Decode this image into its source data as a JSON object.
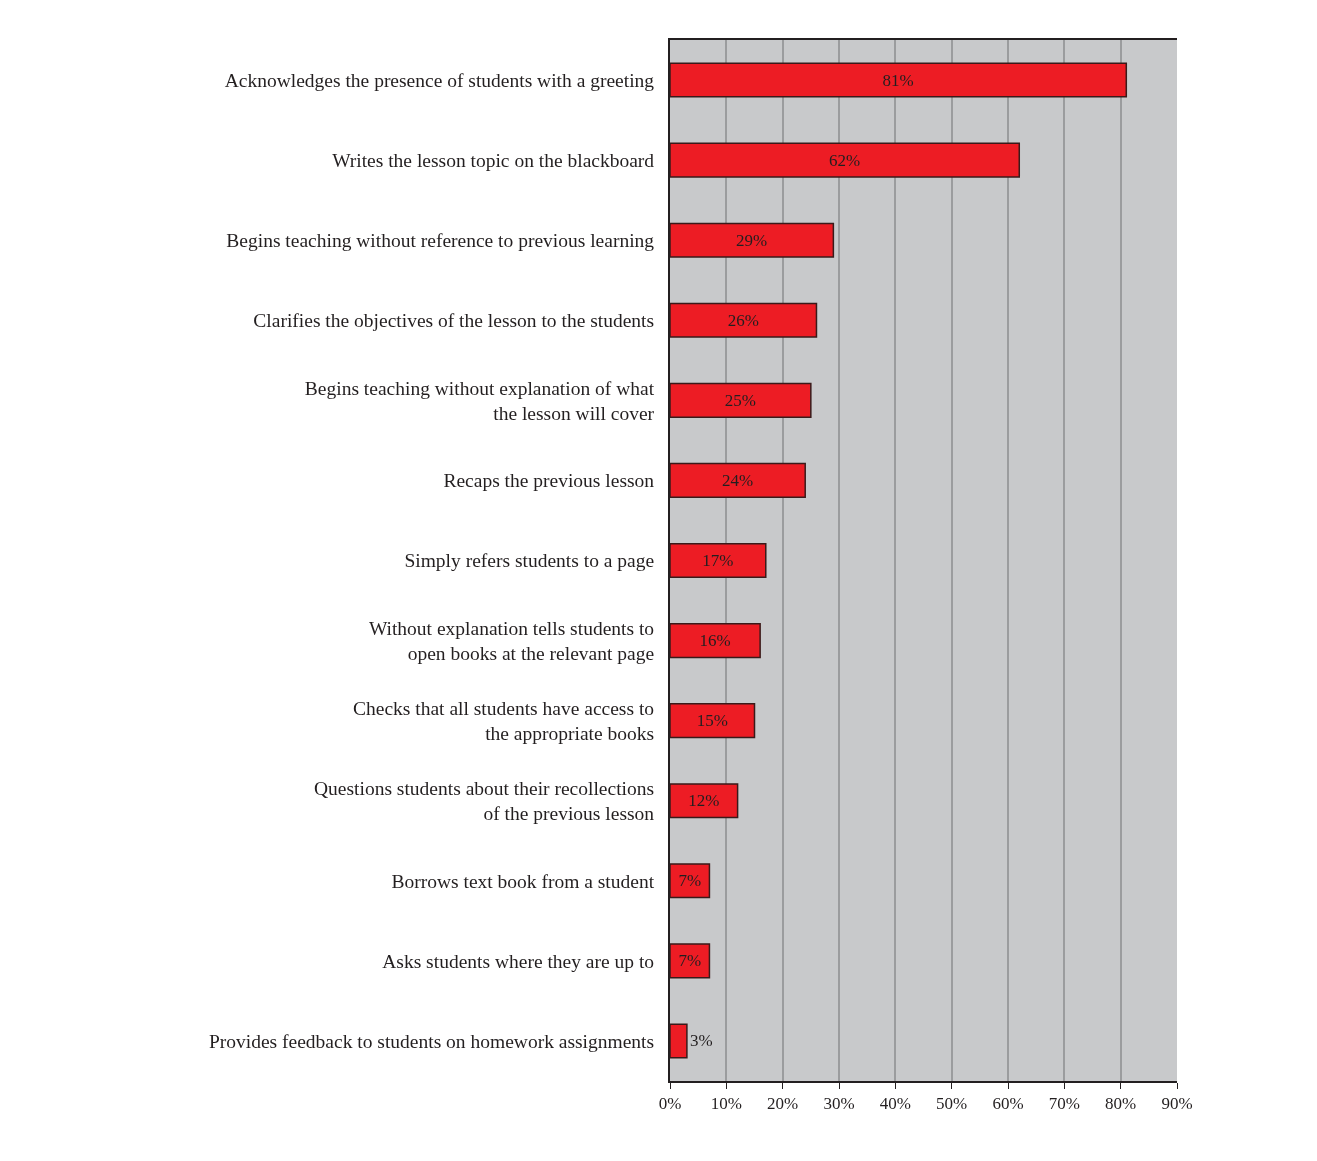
{
  "chart_data": {
    "type": "bar",
    "orientation": "horizontal",
    "categories": [
      "Acknowledges the presence of students with a greeting",
      "Writes the lesson topic on the blackboard",
      "Begins teaching without reference to previous learning",
      "Clarifies the objectives of the lesson to the students",
      "Begins teaching without explanation of what\nthe lesson will cover",
      "Recaps the previous lesson",
      "Simply refers students to a page",
      "Without explanation tells students to\nopen books at the relevant page",
      "Checks that all students have access to\nthe appropriate books",
      "Questions students about their recollections\nof the previous lesson",
      "Borrows text book from a student",
      "Asks students where they are up to",
      "Provides feedback to students on homework assignments"
    ],
    "values": [
      81,
      62,
      29,
      26,
      25,
      24,
      17,
      16,
      15,
      12,
      7,
      7,
      3
    ],
    "value_labels": [
      "81%",
      "62%",
      "29%",
      "26%",
      "25%",
      "24%",
      "17%",
      "16%",
      "15%",
      "12%",
      "7%",
      "7%",
      "3%"
    ],
    "color": "#ed1c24",
    "xlim": [
      0,
      90
    ],
    "xticks": [
      {
        "value": 0,
        "label": "0%"
      },
      {
        "value": 10,
        "label": "10%"
      },
      {
        "value": 20,
        "label": "20%"
      },
      {
        "value": 30,
        "label": "30%"
      },
      {
        "value": 40,
        "label": "40%"
      },
      {
        "value": 50,
        "label": "50%"
      },
      {
        "value": 60,
        "label": "60%"
      },
      {
        "value": 70,
        "label": "70%"
      },
      {
        "value": 80,
        "label": "80%"
      },
      {
        "value": 90,
        "label": "90%"
      }
    ],
    "grid": "x",
    "legend": false
  }
}
